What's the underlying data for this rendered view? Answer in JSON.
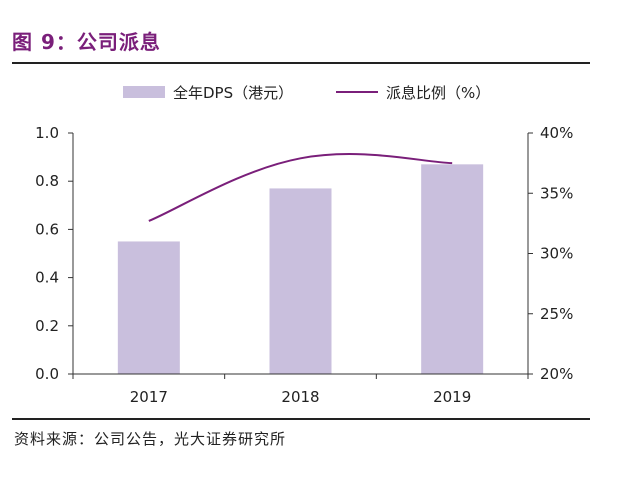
{
  "figure": {
    "title": "图 9：公司派息",
    "source": "资料来源：公司公告，光大证券研究所"
  },
  "colors": {
    "bar": "#c9bfdd",
    "line": "#7a1f7a",
    "axis": "#333333",
    "title": "#7a1f7a"
  },
  "chart_data": {
    "type": "bar+line",
    "categories": [
      "2017",
      "2018",
      "2019"
    ],
    "series": [
      {
        "name": "全年DPS（港元）",
        "type": "bar",
        "axis": "left",
        "values": [
          0.55,
          0.77,
          0.87
        ]
      },
      {
        "name": "派息比例（%）",
        "type": "line",
        "axis": "right",
        "values": [
          32.7,
          37.9,
          37.5
        ]
      }
    ],
    "left_axis": {
      "ylim": [
        0,
        1.0
      ],
      "ticks": [
        "0.0",
        "0.2",
        "0.4",
        "0.6",
        "0.8",
        "1.0"
      ]
    },
    "right_axis": {
      "ylim": [
        20,
        40
      ],
      "ticks": [
        "20%",
        "25%",
        "30%",
        "35%",
        "40%"
      ]
    },
    "legend_position": "top-center",
    "grid": false
  }
}
